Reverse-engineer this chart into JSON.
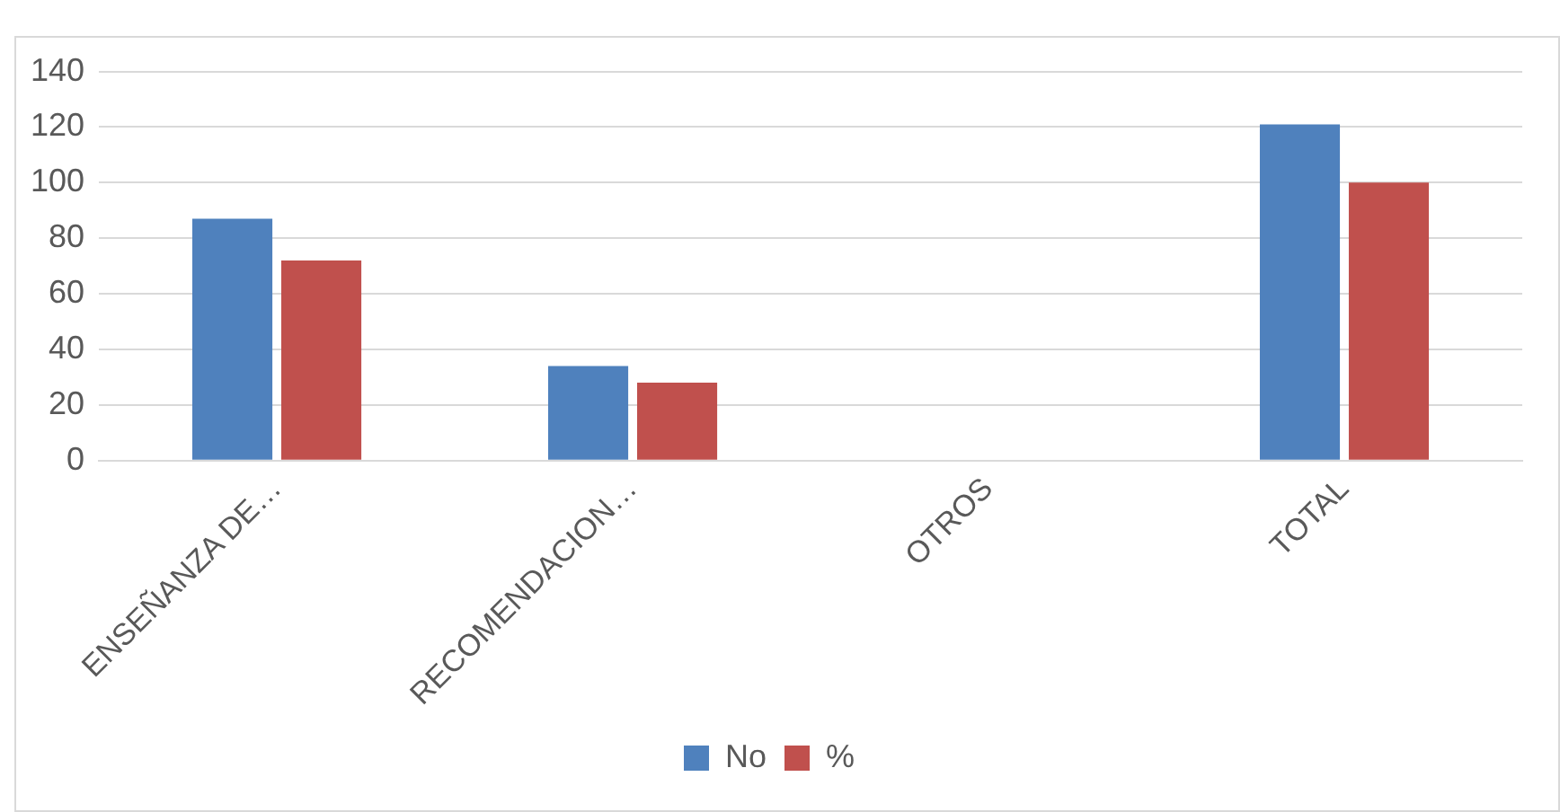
{
  "chart_data": {
    "type": "bar",
    "categories": [
      "ENSEÑANZA DE…",
      "RECOMENDACION…",
      "OTROS",
      "TOTAL"
    ],
    "series": [
      {
        "name": "No",
        "color": "#4f81bd",
        "values": [
          87,
          34,
          0,
          121
        ]
      },
      {
        "name": "%",
        "color": "#c0504d",
        "values": [
          72,
          28,
          0,
          100
        ]
      }
    ],
    "ylim": [
      0,
      140
    ],
    "yticks": [
      0,
      20,
      40,
      60,
      80,
      100,
      120,
      140
    ],
    "grid": "y",
    "legend": "bottom"
  }
}
